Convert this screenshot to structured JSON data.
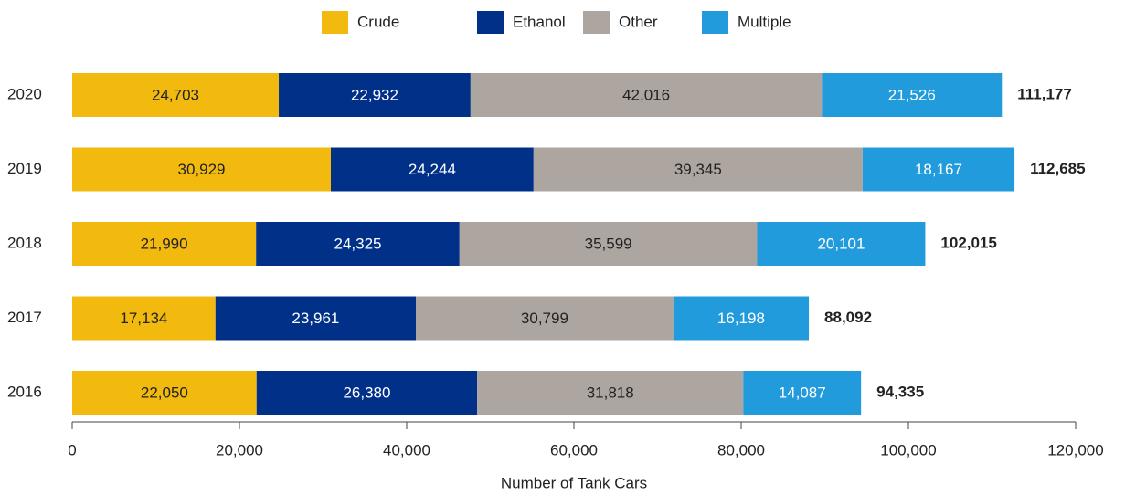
{
  "chart_data": {
    "type": "stacked-barh",
    "x_label": "Number of Tank Cars",
    "categories": [
      "2020",
      "2019",
      "2018",
      "2017",
      "2016"
    ],
    "series": [
      {
        "name": "Crude",
        "color": "#f2b90f",
        "values": [
          24703,
          30929,
          21990,
          17134,
          22050
        ],
        "value_labels": [
          "24,703",
          "30,929",
          "21,990",
          "17,134",
          "22,050"
        ]
      },
      {
        "name": "Ethanol",
        "color": "#003087",
        "values": [
          22932,
          24244,
          24325,
          23961,
          26380
        ],
        "value_labels": [
          "22,932",
          "24,244",
          "24,325",
          "23,961",
          "26,380"
        ]
      },
      {
        "name": "Other",
        "color": "#ada5a0",
        "values": [
          42016,
          39345,
          35599,
          30799,
          31818
        ],
        "value_labels": [
          "42,016",
          "39,345",
          "35,599",
          "30,799",
          "31,818"
        ]
      },
      {
        "name": "Multiple",
        "color": "#229bdc",
        "values": [
          21526,
          18167,
          20101,
          16198,
          14087
        ],
        "value_labels": [
          "21,526",
          "18,167",
          "20,101",
          "16,198",
          "14,087"
        ]
      }
    ],
    "totals": [
      111177,
      112685,
      102015,
      88092,
      94335
    ],
    "total_labels": [
      "111,177",
      "112,685",
      "102,015",
      "88,092",
      "94,335"
    ],
    "xlim": [
      0,
      120000
    ],
    "xticks": [
      0,
      {
        "value": 20000,
        "label": "20,000"
      },
      {
        "value": 40000,
        "label": "40,000"
      },
      {
        "value": 60000,
        "label": "60,000"
      },
      {
        "value": 80000,
        "label": "80,000"
      },
      {
        "value": 100000,
        "label": "100,000"
      },
      {
        "value": 120000,
        "label": "120,000"
      }
    ],
    "legend": "top"
  }
}
